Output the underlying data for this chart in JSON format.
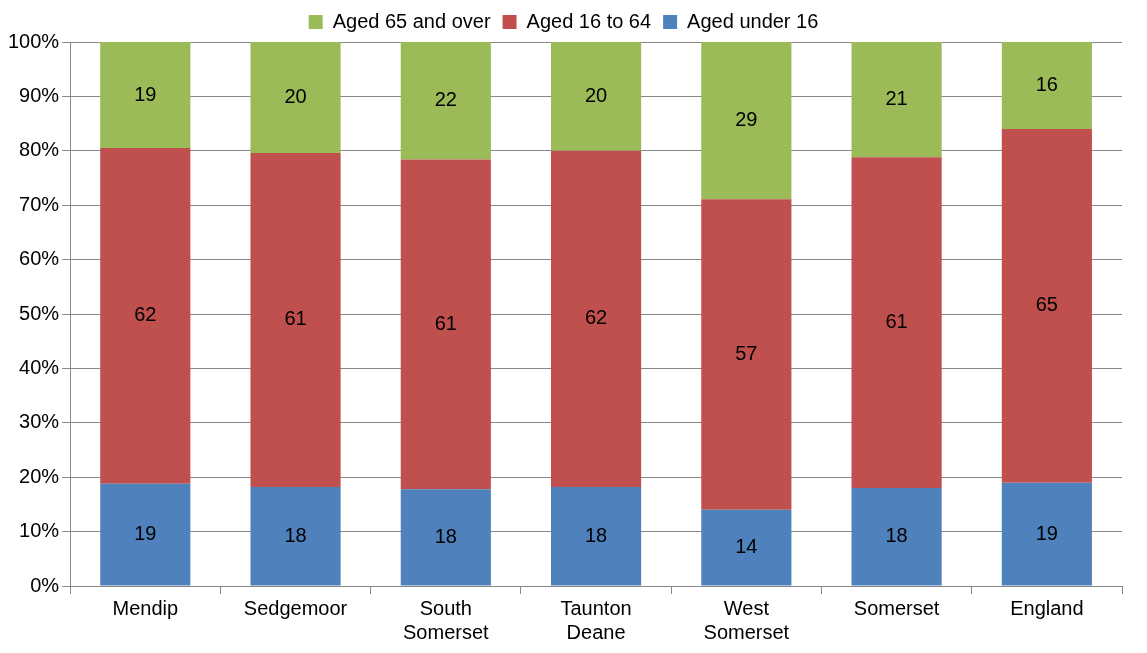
{
  "chart_data": {
    "type": "bar",
    "stacked": true,
    "categories": [
      "Mendip",
      "Sedgemoor",
      "South Somerset",
      "Taunton Deane",
      "West Somerset",
      "Somerset",
      "England"
    ],
    "series": [
      {
        "name": "Aged under 16",
        "color": "#4f81bd",
        "values": [
          18.8,
          18.2,
          17.8,
          18.2,
          14,
          18,
          19
        ],
        "value_labels": [
          "19",
          "18",
          "18",
          "18",
          "14",
          "18",
          "19"
        ]
      },
      {
        "name": "Aged 16 to 64",
        "color": "#c0504d",
        "values": [
          61.7,
          61.4,
          60.6,
          61.8,
          57.1,
          60.8,
          65
        ],
        "value_labels": [
          "62",
          "61",
          "61",
          "62",
          "57",
          "61",
          "65"
        ]
      },
      {
        "name": "Aged 65 and over",
        "color": "#9bbb59",
        "values": [
          19.5,
          20.4,
          21.6,
          20,
          28.9,
          21.2,
          16
        ],
        "value_labels": [
          "19",
          "20",
          "22",
          "20",
          "29",
          "21",
          "16"
        ]
      }
    ],
    "ylim": [
      0,
      100
    ],
    "yticks": [
      {
        "value": 0,
        "label": "0%"
      },
      {
        "value": 10,
        "label": "10%"
      },
      {
        "value": 20,
        "label": "20%"
      },
      {
        "value": 30,
        "label": "30%"
      },
      {
        "value": 40,
        "label": "40%"
      },
      {
        "value": 50,
        "label": "50%"
      },
      {
        "value": 60,
        "label": "60%"
      },
      {
        "value": 70,
        "label": "70%"
      },
      {
        "value": 80,
        "label": "80%"
      },
      {
        "value": 90,
        "label": "90%"
      },
      {
        "value": 100,
        "label": "100%"
      }
    ],
    "grid": "y",
    "legend": "top"
  }
}
